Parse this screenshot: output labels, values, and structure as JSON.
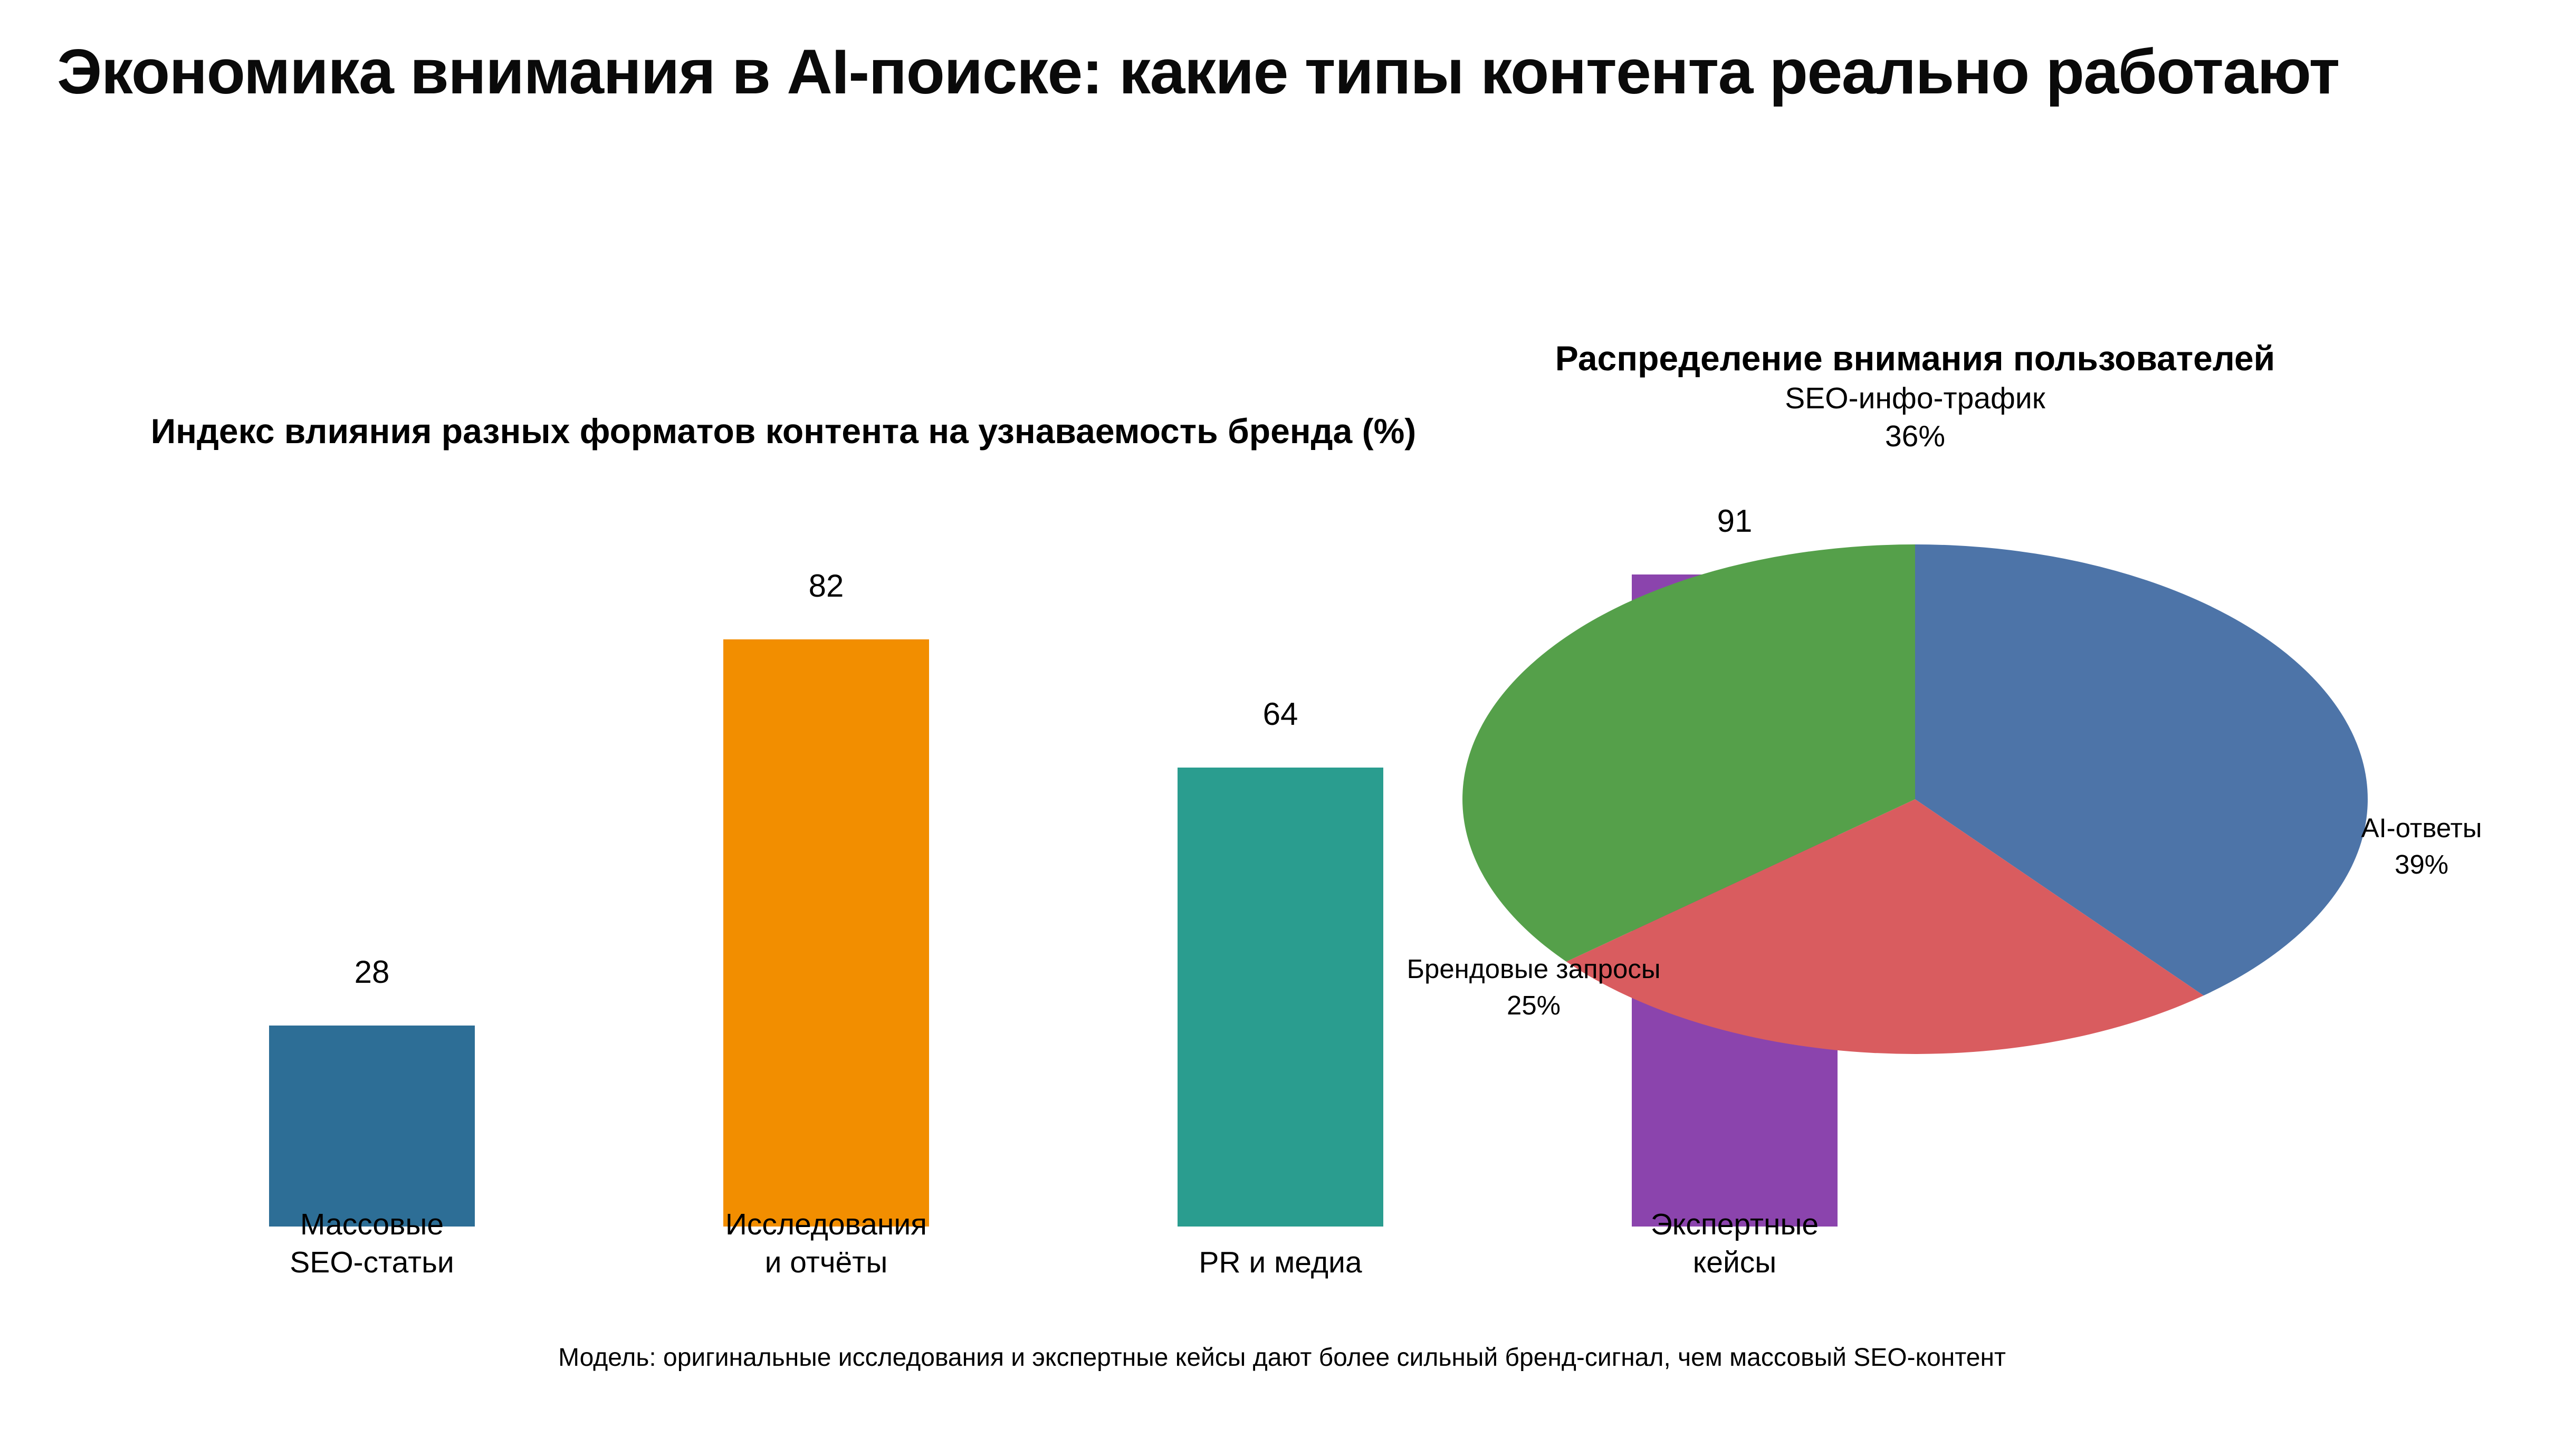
{
  "title": "Экономика внимания в AI-поиске: какие типы контента реально работают",
  "bar_chart": {
    "title": "Индекс влияния разных форматов контента на узнаваемость бренда (%)",
    "bars": [
      {
        "label": "Массовые\nSEO-статьи",
        "value": 28,
        "color": "#2d6e96"
      },
      {
        "label": "Исследования\nи отчёты",
        "value": 82,
        "color": "#f28e00"
      },
      {
        "label": "PR и медиа",
        "value": 64,
        "color": "#2a9d8f"
      },
      {
        "label": "Экспертные\nкейсы",
        "value": 91,
        "color": "#8b44ad"
      }
    ]
  },
  "pie_chart": {
    "title": "Распределение внимания пользователей",
    "slices": [
      {
        "label": "AI-ответы",
        "pct": 39,
        "pct_label": "39%",
        "color": "#4d74a8"
      },
      {
        "label": "Брендовые запросы",
        "pct": 25,
        "pct_label": "25%",
        "color": "#d95c5f"
      },
      {
        "label": "SEO-инфо-трафик",
        "pct": 36,
        "pct_label": "36%",
        "color": "#55a04a"
      }
    ]
  },
  "footer": {
    "text": "Модель: оригинальные исследования и экспертные кейсы дают более сильный бренд-сигнал, чем массовый SEO-контент"
  },
  "chart_data": [
    {
      "type": "bar",
      "title": "Индекс влияния разных форматов контента на узнаваемость бренда (%)",
      "categories": [
        "Массовые SEO-статьи",
        "Исследования и отчёты",
        "PR и медиа",
        "Экспертные кейсы"
      ],
      "values": [
        28,
        82,
        64,
        91
      ],
      "bar_colors": [
        "#2d6e96",
        "#f28e00",
        "#2a9d8f",
        "#8b44ad"
      ],
      "xlabel": "",
      "ylabel": "",
      "ylim": [
        0,
        100
      ],
      "grid": false,
      "axes_visible": false,
      "data_labels": [
        28,
        82,
        64,
        91
      ]
    },
    {
      "type": "pie",
      "title": "Распределение внимания пользователей",
      "labels": [
        "AI-ответы",
        "Брендовые запросы",
        "SEO-инфо-трафик"
      ],
      "values": [
        39,
        25,
        36
      ],
      "colors": [
        "#4d74a8",
        "#d95c5f",
        "#55a04a"
      ],
      "start_angle": 90,
      "direction": "clockwise",
      "legend_position": "outside-labels"
    }
  ]
}
